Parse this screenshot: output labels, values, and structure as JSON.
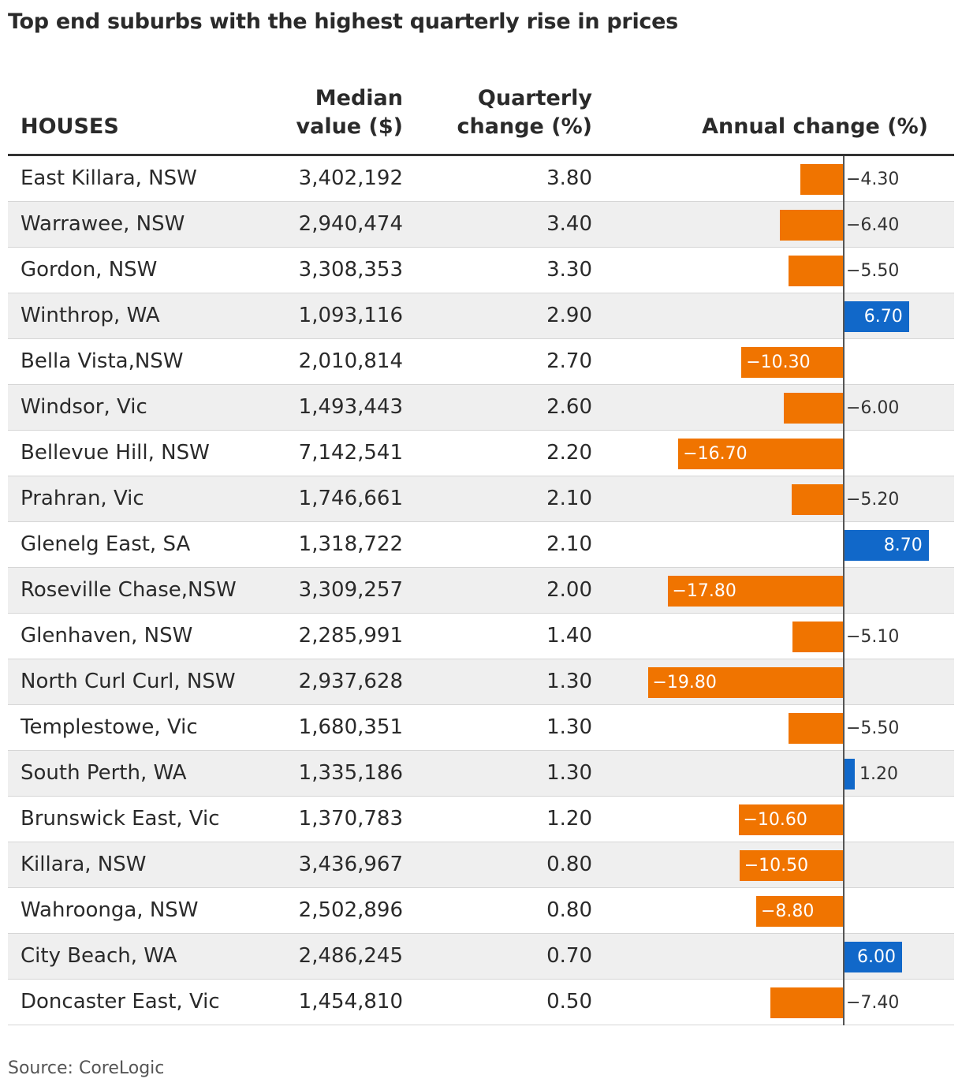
{
  "title": "Top end suburbs with the highest quarterly rise in prices",
  "headers": {
    "name": "HOUSES",
    "median_line1": "Median",
    "median_line2": "value ($)",
    "quarterly_line1": "Quarterly",
    "quarterly_line2": "change (%)",
    "annual": "Annual change (%)"
  },
  "source": "Source: CoreLogic",
  "colors": {
    "negative": "#f07400",
    "positive": "#1168c9",
    "row_alt": "#efefef"
  },
  "chart_data": {
    "type": "table",
    "columns": [
      "HOUSES",
      "Median value ($)",
      "Quarterly change (%)",
      "Annual change (%)"
    ],
    "rows": [
      {
        "suburb": "East Killara, NSW",
        "median": "3,402,192",
        "quarterly": "3.80",
        "annual": -4.3,
        "annual_label": "−4.30"
      },
      {
        "suburb": "Warrawee, NSW",
        "median": "2,940,474",
        "quarterly": "3.40",
        "annual": -6.4,
        "annual_label": "−6.40"
      },
      {
        "suburb": "Gordon, NSW",
        "median": "3,308,353",
        "quarterly": "3.30",
        "annual": -5.5,
        "annual_label": "−5.50"
      },
      {
        "suburb": "Winthrop, WA",
        "median": "1,093,116",
        "quarterly": "2.90",
        "annual": 6.7,
        "annual_label": "6.70"
      },
      {
        "suburb": "Bella Vista,NSW",
        "median": "2,010,814",
        "quarterly": "2.70",
        "annual": -10.3,
        "annual_label": "−10.30"
      },
      {
        "suburb": "Windsor, Vic",
        "median": "1,493,443",
        "quarterly": "2.60",
        "annual": -6.0,
        "annual_label": "−6.00"
      },
      {
        "suburb": "Bellevue Hill, NSW",
        "median": "7,142,541",
        "quarterly": "2.20",
        "annual": -16.7,
        "annual_label": "−16.70"
      },
      {
        "suburb": "Prahran, Vic",
        "median": "1,746,661",
        "quarterly": "2.10",
        "annual": -5.2,
        "annual_label": "−5.20"
      },
      {
        "suburb": "Glenelg East, SA",
        "median": "1,318,722",
        "quarterly": "2.10",
        "annual": 8.7,
        "annual_label": "8.70"
      },
      {
        "suburb": "Roseville Chase,NSW",
        "median": "3,309,257",
        "quarterly": "2.00",
        "annual": -17.8,
        "annual_label": "−17.80"
      },
      {
        "suburb": "Glenhaven, NSW",
        "median": "2,285,991",
        "quarterly": "1.40",
        "annual": -5.1,
        "annual_label": "−5.10"
      },
      {
        "suburb": "North Curl Curl, NSW",
        "median": "2,937,628",
        "quarterly": "1.30",
        "annual": -19.8,
        "annual_label": "−19.80"
      },
      {
        "suburb": "Templestowe, Vic",
        "median": "1,680,351",
        "quarterly": "1.30",
        "annual": -5.5,
        "annual_label": "−5.50"
      },
      {
        "suburb": "South Perth, WA",
        "median": "1,335,186",
        "quarterly": "1.30",
        "annual": 1.2,
        "annual_label": "1.20"
      },
      {
        "suburb": "Brunswick East, Vic",
        "median": "1,370,783",
        "quarterly": "1.20",
        "annual": -10.6,
        "annual_label": "−10.60"
      },
      {
        "suburb": "Killara, NSW",
        "median": "3,436,967",
        "quarterly": "0.80",
        "annual": -10.5,
        "annual_label": "−10.50"
      },
      {
        "suburb": "Wahroonga, NSW",
        "median": "2,502,896",
        "quarterly": "0.80",
        "annual": -8.8,
        "annual_label": "−8.80"
      },
      {
        "suburb": "City Beach, WA",
        "median": "2,486,245",
        "quarterly": "0.70",
        "annual": 6.0,
        "annual_label": "6.00"
      },
      {
        "suburb": "Doncaster East, Vic",
        "median": "1,454,810",
        "quarterly": "0.50",
        "annual": -7.4,
        "annual_label": "−7.40"
      }
    ]
  }
}
